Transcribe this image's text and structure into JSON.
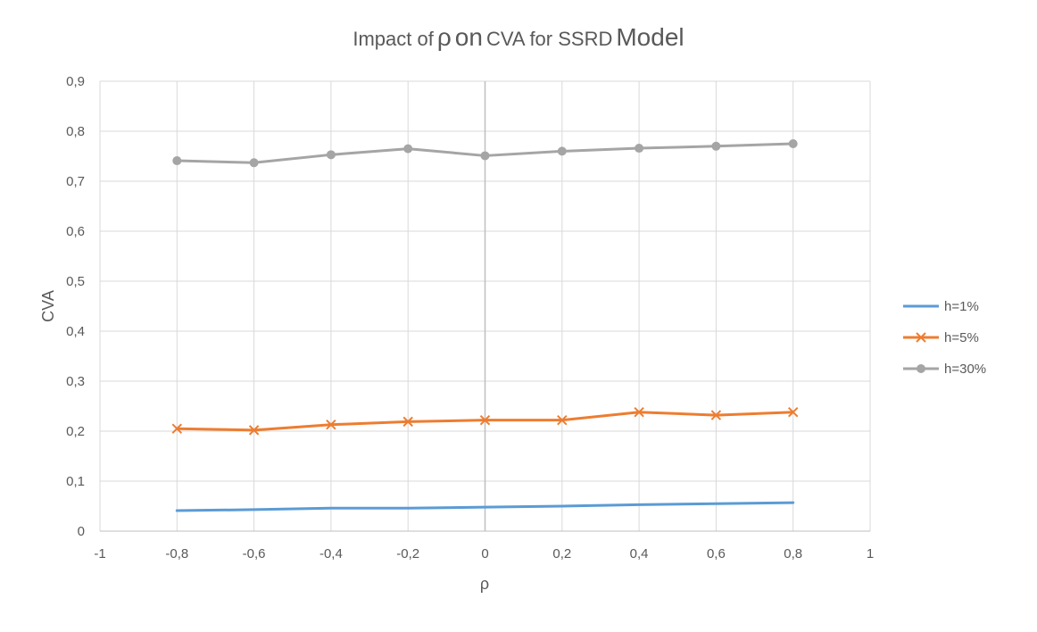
{
  "chart_data": {
    "type": "line",
    "title_parts": [
      "Impact of",
      "ρ",
      "on",
      "CVA for SSRD",
      "Model"
    ],
    "xlabel": "ρ",
    "ylabel": "CVA",
    "xlim": [
      -1,
      1
    ],
    "ylim": [
      0,
      0.9
    ],
    "x_ticks": [
      "-1",
      "-0,8",
      "-0,6",
      "-0,4",
      "-0,2",
      "0",
      "0,2",
      "0,4",
      "0,6",
      "0,8",
      "1"
    ],
    "x_tick_values": [
      -1,
      -0.8,
      -0.6,
      -0.4,
      -0.2,
      0,
      0.2,
      0.4,
      0.6,
      0.8,
      1
    ],
    "y_ticks": [
      "0",
      "0,1",
      "0,2",
      "0,3",
      "0,4",
      "0,5",
      "0,6",
      "0,7",
      "0,8",
      "0,9"
    ],
    "y_tick_values": [
      0,
      0.1,
      0.2,
      0.3,
      0.4,
      0.5,
      0.6,
      0.7,
      0.8,
      0.9
    ],
    "grid": true,
    "legend_position": "right",
    "x": [
      -0.8,
      -0.6,
      -0.4,
      -0.2,
      0,
      0.2,
      0.4,
      0.6,
      0.8
    ],
    "series": [
      {
        "name": "h=1%",
        "color": "#5b9bd5",
        "marker": "none",
        "values": [
          0.041,
          0.043,
          0.046,
          0.046,
          0.048,
          0.05,
          0.053,
          0.055,
          0.057
        ]
      },
      {
        "name": "h=5%",
        "color": "#ed7d31",
        "marker": "x",
        "values": [
          0.205,
          0.202,
          0.213,
          0.219,
          0.222,
          0.222,
          0.238,
          0.232,
          0.238
        ]
      },
      {
        "name": "h=30%",
        "color": "#a5a5a5",
        "marker": "circle",
        "values": [
          0.741,
          0.737,
          0.753,
          0.765,
          0.751,
          0.76,
          0.766,
          0.77,
          0.775
        ]
      }
    ]
  }
}
